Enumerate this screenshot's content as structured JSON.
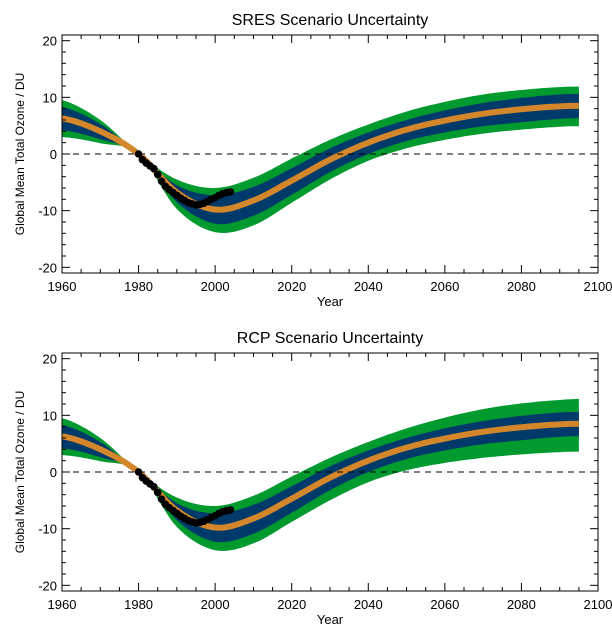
{
  "colors": {
    "outer_band": "#009a2e",
    "inner_band": "#003a6b",
    "central_line": "#d4862a",
    "observations": "#000000",
    "zero_line": "#000000"
  },
  "chart_data": [
    {
      "type": "line",
      "title": "SRES Scenario Uncertainty",
      "xlabel": "Year",
      "ylabel": "Global Mean Total Ozone / DU",
      "xlim": [
        1960,
        2100
      ],
      "ylim": [
        -21,
        21
      ],
      "xticks": [
        1960,
        1980,
        2000,
        2020,
        2040,
        2060,
        2080,
        2100
      ],
      "yticks": [
        -20,
        -10,
        0,
        10,
        20
      ],
      "x": [
        1960,
        1970,
        1980,
        1990,
        2000,
        2010,
        2020,
        2030,
        2040,
        2050,
        2060,
        2070,
        2080,
        2090,
        2095
      ],
      "series": [
        {
          "role": "outer_upper",
          "values": [
            9.5,
            6.0,
            0.0,
            -4.5,
            -6.0,
            -4.2,
            -0.8,
            2.5,
            5.2,
            7.5,
            9.2,
            10.5,
            11.3,
            11.8,
            11.9
          ]
        },
        {
          "role": "inner_upper",
          "values": [
            8.3,
            5.3,
            0.0,
            -5.5,
            -7.3,
            -5.8,
            -2.5,
            1.0,
            3.8,
            6.0,
            7.7,
            9.0,
            9.9,
            10.5,
            10.6
          ]
        },
        {
          "role": "central",
          "values": [
            6.3,
            4.0,
            0.0,
            -6.8,
            -9.8,
            -8.2,
            -4.7,
            -1.0,
            2.0,
            4.3,
            5.9,
            7.1,
            7.9,
            8.4,
            8.5
          ]
        },
        {
          "role": "inner_lower",
          "values": [
            4.2,
            2.6,
            0.0,
            -8.5,
            -12.3,
            -10.9,
            -7.2,
            -3.2,
            0.0,
            2.3,
            3.8,
            4.9,
            5.6,
            6.2,
            6.3
          ]
        },
        {
          "role": "outer_lower",
          "values": [
            3.0,
            1.9,
            0.0,
            -9.7,
            -13.8,
            -12.6,
            -8.6,
            -4.5,
            -1.2,
            1.0,
            2.5,
            3.6,
            4.3,
            4.8,
            4.9
          ]
        }
      ],
      "observations": {
        "x": [
          1980,
          1981,
          1982,
          1983,
          1984,
          1985,
          1986,
          1987,
          1988,
          1989,
          1990,
          1991,
          1992,
          1993,
          1994,
          1995,
          1996,
          1997,
          1998,
          1999,
          2000,
          2001,
          2002,
          2003,
          2004
        ],
        "y": [
          0.0,
          -1.0,
          -1.6,
          -2.1,
          -2.6,
          -3.6,
          -4.8,
          -5.7,
          -6.3,
          -6.8,
          -7.3,
          -7.8,
          -8.2,
          -8.6,
          -8.8,
          -9.0,
          -8.9,
          -8.7,
          -8.4,
          -8.0,
          -7.7,
          -7.3,
          -7.0,
          -6.8,
          -6.7
        ]
      },
      "zero_line": 0
    },
    {
      "type": "line",
      "title": "RCP Scenario Uncertainty",
      "xlabel": "Year",
      "ylabel": "Global Mean Total Ozone / DU",
      "xlim": [
        1960,
        2100
      ],
      "ylim": [
        -21,
        21
      ],
      "xticks": [
        1960,
        1980,
        2000,
        2020,
        2040,
        2060,
        2080,
        2100
      ],
      "yticks": [
        -20,
        -10,
        0,
        10,
        20
      ],
      "x": [
        1960,
        1970,
        1980,
        1990,
        2000,
        2010,
        2020,
        2030,
        2040,
        2050,
        2060,
        2070,
        2080,
        2090,
        2095
      ],
      "series": [
        {
          "role": "outer_upper",
          "values": [
            9.5,
            6.0,
            0.0,
            -4.5,
            -6.0,
            -4.2,
            -0.8,
            2.5,
            5.3,
            7.7,
            9.6,
            11.1,
            12.1,
            12.7,
            12.9
          ]
        },
        {
          "role": "inner_upper",
          "values": [
            8.3,
            5.3,
            0.0,
            -5.5,
            -7.3,
            -5.8,
            -2.5,
            1.0,
            3.8,
            6.0,
            7.7,
            9.0,
            9.9,
            10.5,
            10.6
          ]
        },
        {
          "role": "central",
          "values": [
            6.3,
            4.0,
            0.0,
            -6.8,
            -9.8,
            -8.2,
            -4.7,
            -1.0,
            2.0,
            4.3,
            5.9,
            7.1,
            7.9,
            8.4,
            8.5
          ]
        },
        {
          "role": "inner_lower",
          "values": [
            4.2,
            2.6,
            0.0,
            -8.5,
            -12.3,
            -10.9,
            -7.2,
            -3.2,
            0.0,
            2.3,
            3.8,
            4.9,
            5.6,
            6.2,
            6.3
          ]
        },
        {
          "role": "outer_lower",
          "values": [
            3.0,
            1.9,
            0.0,
            -9.7,
            -13.8,
            -12.6,
            -8.8,
            -5.0,
            -1.8,
            0.3,
            1.6,
            2.5,
            3.1,
            3.5,
            3.6
          ]
        }
      ],
      "observations": {
        "x": [
          1980,
          1981,
          1982,
          1983,
          1984,
          1985,
          1986,
          1987,
          1988,
          1989,
          1990,
          1991,
          1992,
          1993,
          1994,
          1995,
          1996,
          1997,
          1998,
          1999,
          2000,
          2001,
          2002,
          2003,
          2004
        ],
        "y": [
          0.0,
          -1.0,
          -1.6,
          -2.1,
          -2.6,
          -3.6,
          -4.8,
          -5.7,
          -6.3,
          -6.8,
          -7.3,
          -7.8,
          -8.2,
          -8.6,
          -8.8,
          -9.0,
          -8.9,
          -8.7,
          -8.4,
          -8.0,
          -7.7,
          -7.3,
          -7.0,
          -6.8,
          -6.7
        ]
      },
      "zero_line": 0
    }
  ]
}
